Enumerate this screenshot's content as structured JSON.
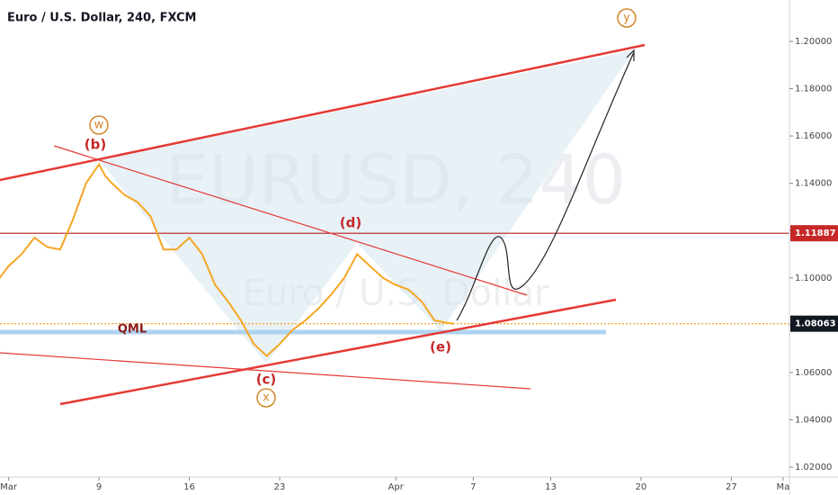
{
  "chart_data": {
    "type": "line",
    "title": "Euro / U.S. Dollar, 240, FXCM",
    "watermark": "EURUSD, 240",
    "watermark_subtitle": "Euro / U.S. Dollar",
    "x": [
      1.3,
      2,
      3,
      4,
      5,
      6,
      7,
      8,
      9,
      9.5,
      10,
      11,
      12,
      13,
      14,
      15,
      16,
      17,
      18,
      19,
      20,
      21,
      22,
      23,
      24,
      25,
      26,
      27,
      28,
      29,
      30,
      31,
      32,
      33,
      34,
      35,
      36,
      36.5
    ],
    "series": [
      {
        "name": "EURUSD",
        "color": "#f5a623",
        "values": [
          1.1,
          1.105,
          1.11,
          1.117,
          1.113,
          1.112,
          1.125,
          1.14,
          1.148,
          1.143,
          1.14,
          1.135,
          1.132,
          1.126,
          1.112,
          1.112,
          1.117,
          1.11,
          1.097,
          1.09,
          1.082,
          1.072,
          1.067,
          1.072,
          1.078,
          1.082,
          1.087,
          1.093,
          1.1,
          1.11,
          1.105,
          1.1,
          1.097,
          1.095,
          1.09,
          1.082,
          1.081,
          1.0806
        ]
      }
    ],
    "xlim": [
      1.33,
      62.5
    ],
    "xticks": [
      {
        "value": 2,
        "label": "Mar"
      },
      9,
      16,
      23,
      {
        "value": 32,
        "label": "Apr"
      },
      {
        "value": 38,
        "label": "7"
      },
      {
        "value": 44,
        "label": "13"
      },
      {
        "value": 51,
        "label": "20"
      },
      {
        "value": 58,
        "label": "27"
      },
      {
        "value": 62,
        "label": "Ma"
      }
    ],
    "ylim": [
      1.0158,
      1.2175
    ],
    "yticks": [
      {
        "value": 1.02,
        "label": "1.02000"
      },
      {
        "value": 1.04,
        "label": "1.04000"
      },
      {
        "value": 1.06,
        "label": "1.06000"
      },
      {
        "value": 1.08,
        "label": "1.08000"
      },
      {
        "value": 1.1,
        "label": "1.10000"
      },
      {
        "value": 1.12,
        "label": "1.12000"
      },
      {
        "value": 1.14,
        "label": "1.14000"
      },
      {
        "value": 1.16,
        "label": "1.16000"
      },
      {
        "value": 1.18,
        "label": "1.18000"
      },
      {
        "value": 1.2,
        "label": "1.20000"
      }
    ],
    "levels": [
      {
        "value": 1.11887,
        "label": "1.11887",
        "color": "#b71c1c",
        "box": "#c62828"
      },
      {
        "value": 1.08063,
        "label": "1.08063",
        "color": "#f5a623",
        "box": "#131722"
      }
    ],
    "annotations": {
      "w": "w",
      "b": "(b)",
      "d": "(d)",
      "c": "(c)",
      "x": "x",
      "e": "(e)",
      "y": "y",
      "qml": "QML"
    }
  }
}
